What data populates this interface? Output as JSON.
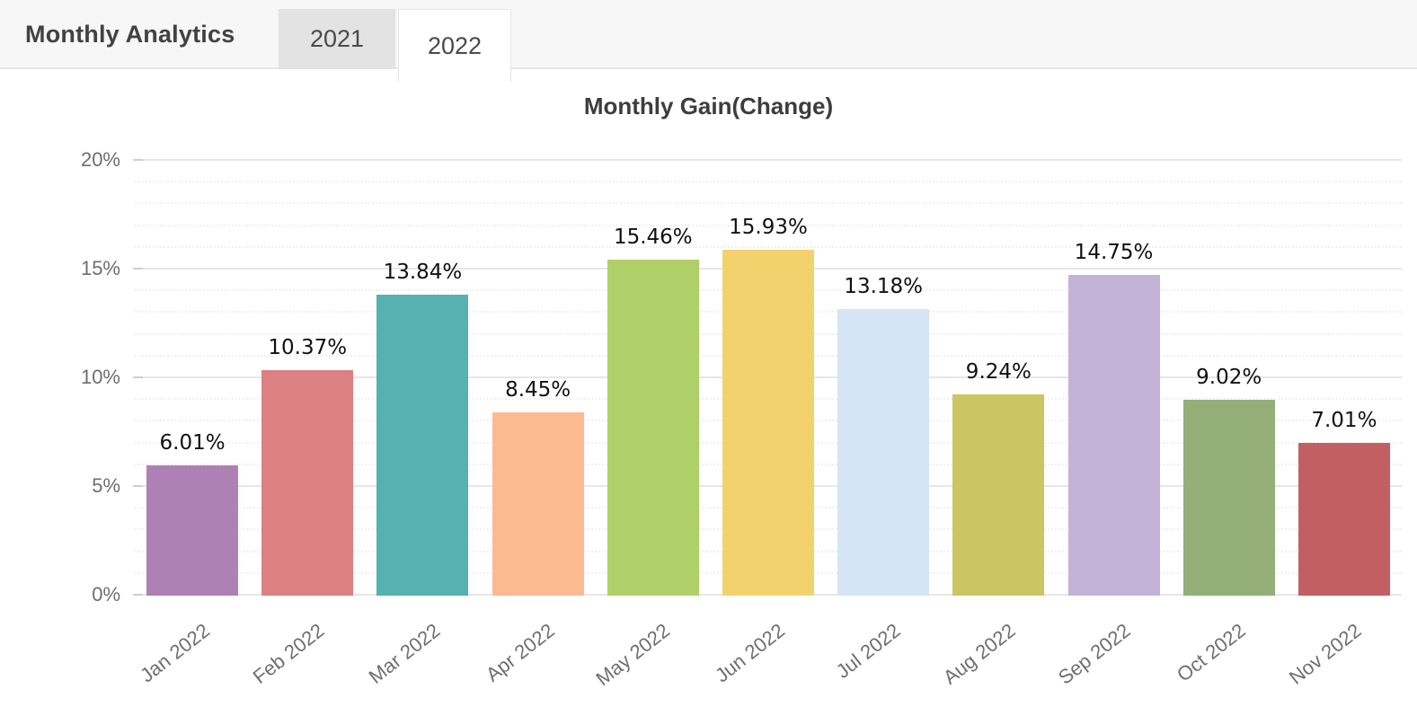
{
  "header": {
    "title": "Monthly Analytics",
    "tabs": [
      {
        "label": "2021",
        "active": false
      },
      {
        "label": "2022",
        "active": true
      }
    ]
  },
  "chart_data": {
    "type": "bar",
    "title": "Monthly Gain(Change)",
    "categories": [
      "Jan 2022",
      "Feb 2022",
      "Mar 2022",
      "Apr 2022",
      "May 2022",
      "Jun 2022",
      "Jul 2022",
      "Aug 2022",
      "Sep 2022",
      "Oct 2022",
      "Nov 2022"
    ],
    "values": [
      6.01,
      10.37,
      13.84,
      8.45,
      15.46,
      15.93,
      13.18,
      9.24,
      14.75,
      9.02,
      7.01
    ],
    "value_labels": [
      "6.01%",
      "10.37%",
      "13.84%",
      "8.45%",
      "15.46%",
      "15.93%",
      "13.18%",
      "9.24%",
      "14.75%",
      "9.02%",
      "7.01%"
    ],
    "bar_colors": [
      "#AE81B4",
      "#DD8083",
      "#56B1B1",
      "#FCBA90",
      "#AFCF68",
      "#F3D26E",
      "#D5E5F5",
      "#CBC563",
      "#C4B3D9",
      "#94AF78",
      "#C25F63"
    ],
    "xlabel": "",
    "ylabel": "",
    "ylim": [
      0,
      20
    ],
    "y_major_step": 5,
    "y_minor_step": 1,
    "y_tick_labels": [
      "0%",
      "5%",
      "10%",
      "15%",
      "20%"
    ],
    "grid": true,
    "legend": "none",
    "x_label_rotation_deg": -38
  },
  "colors": {
    "header_bg": "#f7f7f7",
    "tab_inactive_bg": "#e3e3e3",
    "tab_active_bg": "#ffffff",
    "axis_text": "#6e6e6e",
    "value_label_text": "#111111",
    "gridline_major": "#e7e7e7"
  }
}
